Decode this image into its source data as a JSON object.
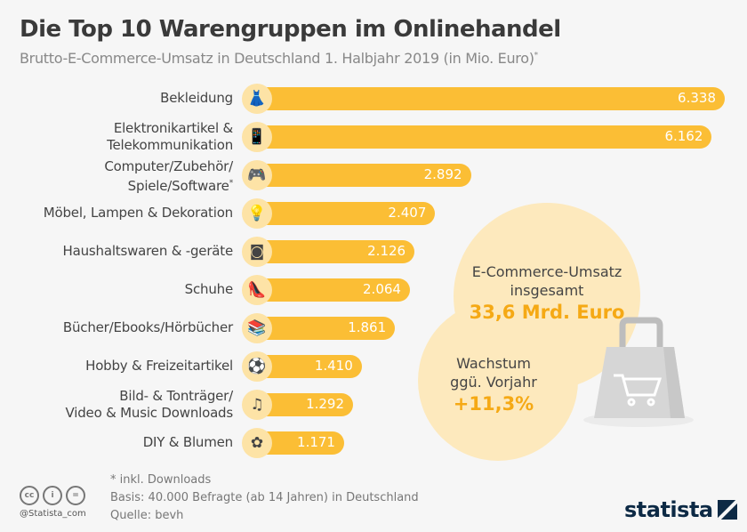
{
  "title": "Die Top 10 Warengruppen im Onlinehandel",
  "subtitle": "Brutto-E-Commerce-Umsatz  in Deutschland 1. Halbjahr 2019 (in Mio. Euro)",
  "subtitle_mark": "*",
  "colors": {
    "bar": "#fbbe35",
    "icon_bg": "#fde3a6",
    "highlight": "#f5a915",
    "blob": "#fde9bd"
  },
  "chart_data": {
    "type": "bar",
    "orientation": "horizontal",
    "title": "Die Top 10 Warengruppen im Onlinehandel",
    "xlabel": "",
    "ylabel": "Brutto-E-Commerce-Umsatz (in Mio. Euro)",
    "xlim": [
      0,
      6338
    ],
    "categories": [
      {
        "lines": [
          "Bekleidung"
        ],
        "icon": "dress-icon",
        "glyph": "👗"
      },
      {
        "lines": [
          "Elektronikartikel &",
          "Telekommunikation"
        ],
        "icon": "tablet-icon",
        "glyph": "📱"
      },
      {
        "lines": [
          "Computer/Zubehör/",
          "Spiele/Software"
        ],
        "mark": "*",
        "icon": "gamepad-icon",
        "glyph": "🎮"
      },
      {
        "lines": [
          "Möbel, Lampen & Dekoration"
        ],
        "icon": "lamp-icon",
        "glyph": "💡"
      },
      {
        "lines": [
          "Haushaltswaren & -geräte"
        ],
        "icon": "washing-machine-icon",
        "glyph": "◙"
      },
      {
        "lines": [
          "Schuhe"
        ],
        "icon": "shoe-icon",
        "glyph": "👠"
      },
      {
        "lines": [
          "Bücher/Ebooks/Hörbücher"
        ],
        "icon": "books-icon",
        "glyph": "📚"
      },
      {
        "lines": [
          "Hobby & Freizeitartikel"
        ],
        "icon": "football-icon",
        "glyph": "⚽"
      },
      {
        "lines": [
          "Bild- & Tonträger/",
          "Video & Music Downloads"
        ],
        "icon": "music-note-icon",
        "glyph": "♫"
      },
      {
        "lines": [
          "DIY & Blumen"
        ],
        "icon": "flower-icon",
        "glyph": "✿"
      }
    ],
    "values": [
      6338,
      6162,
      2892,
      2407,
      2126,
      2064,
      1861,
      1410,
      1292,
      1171
    ],
    "value_labels": [
      "6.338",
      "6.162",
      "2.892",
      "2.407",
      "2.126",
      "2.064",
      "1.861",
      "1.410",
      "1.292",
      "1.171"
    ]
  },
  "callout_total": {
    "line1": "E-Commerce-Umsatz",
    "line2": "insgesamt",
    "value": "33,6 Mrd. Euro"
  },
  "callout_growth": {
    "line1": "Wachstum",
    "line2": "ggü. Vorjahr",
    "value": "+11,3%"
  },
  "footer": {
    "note": "* inkl. Downloads",
    "basis": "Basis: 40.000 Befragte (ab 14 Jahren) in Deutschland",
    "source": "Quelle: bevh",
    "handle": "@Statista_com",
    "cc_icons": [
      "cc",
      "i",
      "="
    ],
    "logo": "statista"
  }
}
